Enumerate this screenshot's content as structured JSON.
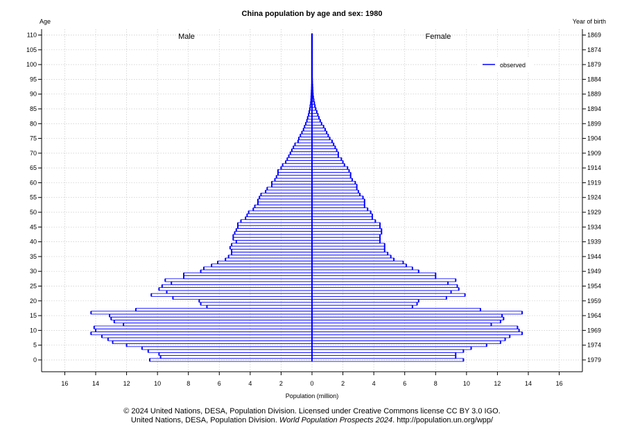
{
  "chart_data": {
    "type": "bar",
    "subtype": "population-pyramid",
    "title": "China population by age and sex: 1980",
    "xlabel": "Population (million)",
    "ylabel_left": "Age",
    "ylabel_right": "Year of birth",
    "male_label": "Male",
    "female_label": "Female",
    "legend": [
      {
        "name": "observed",
        "color": "#0000ff"
      }
    ],
    "legend_position": "top-right",
    "xlim": [
      -17.5,
      17.5
    ],
    "ylim": [
      -4,
      112
    ],
    "x_ticks": [
      -16,
      -14,
      -12,
      -10,
      -8,
      -6,
      -4,
      -2,
      0,
      2,
      4,
      6,
      8,
      10,
      12,
      14,
      16
    ],
    "x_tick_labels": [
      "16",
      "14",
      "12",
      "10",
      "8",
      "6",
      "4",
      "2",
      "0",
      "2",
      "4",
      "6",
      "8",
      "10",
      "12",
      "14",
      "16"
    ],
    "y_ticks": [
      0,
      5,
      10,
      15,
      20,
      25,
      30,
      35,
      40,
      45,
      50,
      55,
      60,
      65,
      70,
      75,
      80,
      85,
      90,
      95,
      100,
      105,
      110
    ],
    "y_tick_labels": [
      "0",
      "5",
      "10",
      "15",
      "20",
      "25",
      "30",
      "35",
      "40",
      "45",
      "50",
      "55",
      "60",
      "65",
      "70",
      "75",
      "80",
      "85",
      "90",
      "95",
      "100",
      "105",
      "110"
    ],
    "birth_year_labels": [
      "1979",
      "1974",
      "1969",
      "1964",
      "1959",
      "1954",
      "1949",
      "1944",
      "1939",
      "1934",
      "1929",
      "1924",
      "1919",
      "1914",
      "1909",
      "1904",
      "1899",
      "1894",
      "1889",
      "1884",
      "1879",
      "1874",
      "1869"
    ],
    "grid": true,
    "ages": [
      0,
      1,
      2,
      3,
      4,
      5,
      6,
      7,
      8,
      9,
      10,
      11,
      12,
      13,
      14,
      15,
      16,
      17,
      18,
      19,
      20,
      21,
      22,
      23,
      24,
      25,
      26,
      27,
      28,
      29,
      30,
      31,
      32,
      33,
      34,
      35,
      36,
      37,
      38,
      39,
      40,
      41,
      42,
      43,
      44,
      45,
      46,
      47,
      48,
      49,
      50,
      51,
      52,
      53,
      54,
      55,
      56,
      57,
      58,
      59,
      60,
      61,
      62,
      63,
      64,
      65,
      66,
      67,
      68,
      69,
      70,
      71,
      72,
      73,
      74,
      75,
      76,
      77,
      78,
      79,
      80,
      81,
      82,
      83,
      84,
      85,
      86,
      87,
      88,
      89,
      90,
      91,
      92,
      93,
      94,
      95,
      96,
      97,
      98,
      99,
      100,
      101,
      102,
      103,
      104,
      105,
      106,
      107,
      108,
      109,
      110
    ],
    "series": [
      {
        "name": "Male",
        "values": [
          10.5,
          9.8,
          9.9,
          10.6,
          11.0,
          12.0,
          12.9,
          13.2,
          13.6,
          14.3,
          14.0,
          14.1,
          12.2,
          12.8,
          13.0,
          13.1,
          14.3,
          11.4,
          6.8,
          7.2,
          7.3,
          9.0,
          10.4,
          9.4,
          9.9,
          9.7,
          9.1,
          9.5,
          8.3,
          8.3,
          7.2,
          7.0,
          6.5,
          6.1,
          5.6,
          5.4,
          5.2,
          5.2,
          5.3,
          5.2,
          4.9,
          5.1,
          5.1,
          5.0,
          4.9,
          4.8,
          4.8,
          4.6,
          4.3,
          4.2,
          4.1,
          3.8,
          3.7,
          3.5,
          3.5,
          3.4,
          3.3,
          3.0,
          2.9,
          2.6,
          2.6,
          2.4,
          2.3,
          2.2,
          2.2,
          2.0,
          1.9,
          1.7,
          1.6,
          1.5,
          1.4,
          1.3,
          1.2,
          1.1,
          0.9,
          0.85,
          0.75,
          0.65,
          0.55,
          0.48,
          0.4,
          0.33,
          0.28,
          0.22,
          0.18,
          0.14,
          0.11,
          0.08,
          0.06,
          0.05,
          0.04,
          0.03,
          0.02,
          0.015,
          0.01,
          0.01,
          0.01,
          0.01,
          0.01,
          0.01,
          0.01,
          0.01,
          0.01,
          0.01,
          0.01,
          0.01,
          0.01,
          0.01,
          0.01,
          0.01,
          0.01
        ]
      },
      {
        "name": "Female",
        "values": [
          9.8,
          9.3,
          9.3,
          9.8,
          10.3,
          11.3,
          12.2,
          12.5,
          12.8,
          13.6,
          13.4,
          13.3,
          11.6,
          12.2,
          12.4,
          12.3,
          13.6,
          10.9,
          6.5,
          6.8,
          6.9,
          8.7,
          9.9,
          9.0,
          9.5,
          9.4,
          8.8,
          9.3,
          8.0,
          8.0,
          6.9,
          6.5,
          6.1,
          5.9,
          5.3,
          5.1,
          4.9,
          4.7,
          4.7,
          4.7,
          4.4,
          4.4,
          4.4,
          4.5,
          4.5,
          4.4,
          4.4,
          4.1,
          3.9,
          3.9,
          3.8,
          3.6,
          3.4,
          3.4,
          3.4,
          3.3,
          3.1,
          3.0,
          2.9,
          2.9,
          2.8,
          2.6,
          2.5,
          2.5,
          2.4,
          2.3,
          2.1,
          2.0,
          1.9,
          1.7,
          1.7,
          1.6,
          1.5,
          1.4,
          1.3,
          1.15,
          1.05,
          0.95,
          0.85,
          0.75,
          0.62,
          0.53,
          0.45,
          0.38,
          0.31,
          0.24,
          0.19,
          0.15,
          0.11,
          0.08,
          0.06,
          0.05,
          0.04,
          0.03,
          0.02,
          0.015,
          0.01,
          0.01,
          0.01,
          0.01,
          0.01,
          0.01,
          0.01,
          0.01,
          0.01,
          0.01,
          0.01,
          0.01,
          0.01,
          0.01,
          0.01
        ]
      }
    ]
  },
  "footer": {
    "line1": "© 2024 United Nations, DESA, Population Division. Licensed under Creative Commons license CC BY 3.0 IGO.",
    "line2_prefix": "United Nations, DESA, Population Division. ",
    "line2_italic": "World Population Prospects 2024",
    "line2_suffix": ". http://population.un.org/wpp/"
  },
  "colors": {
    "bar": "#0000ff",
    "grid": "#c8c8c8"
  }
}
